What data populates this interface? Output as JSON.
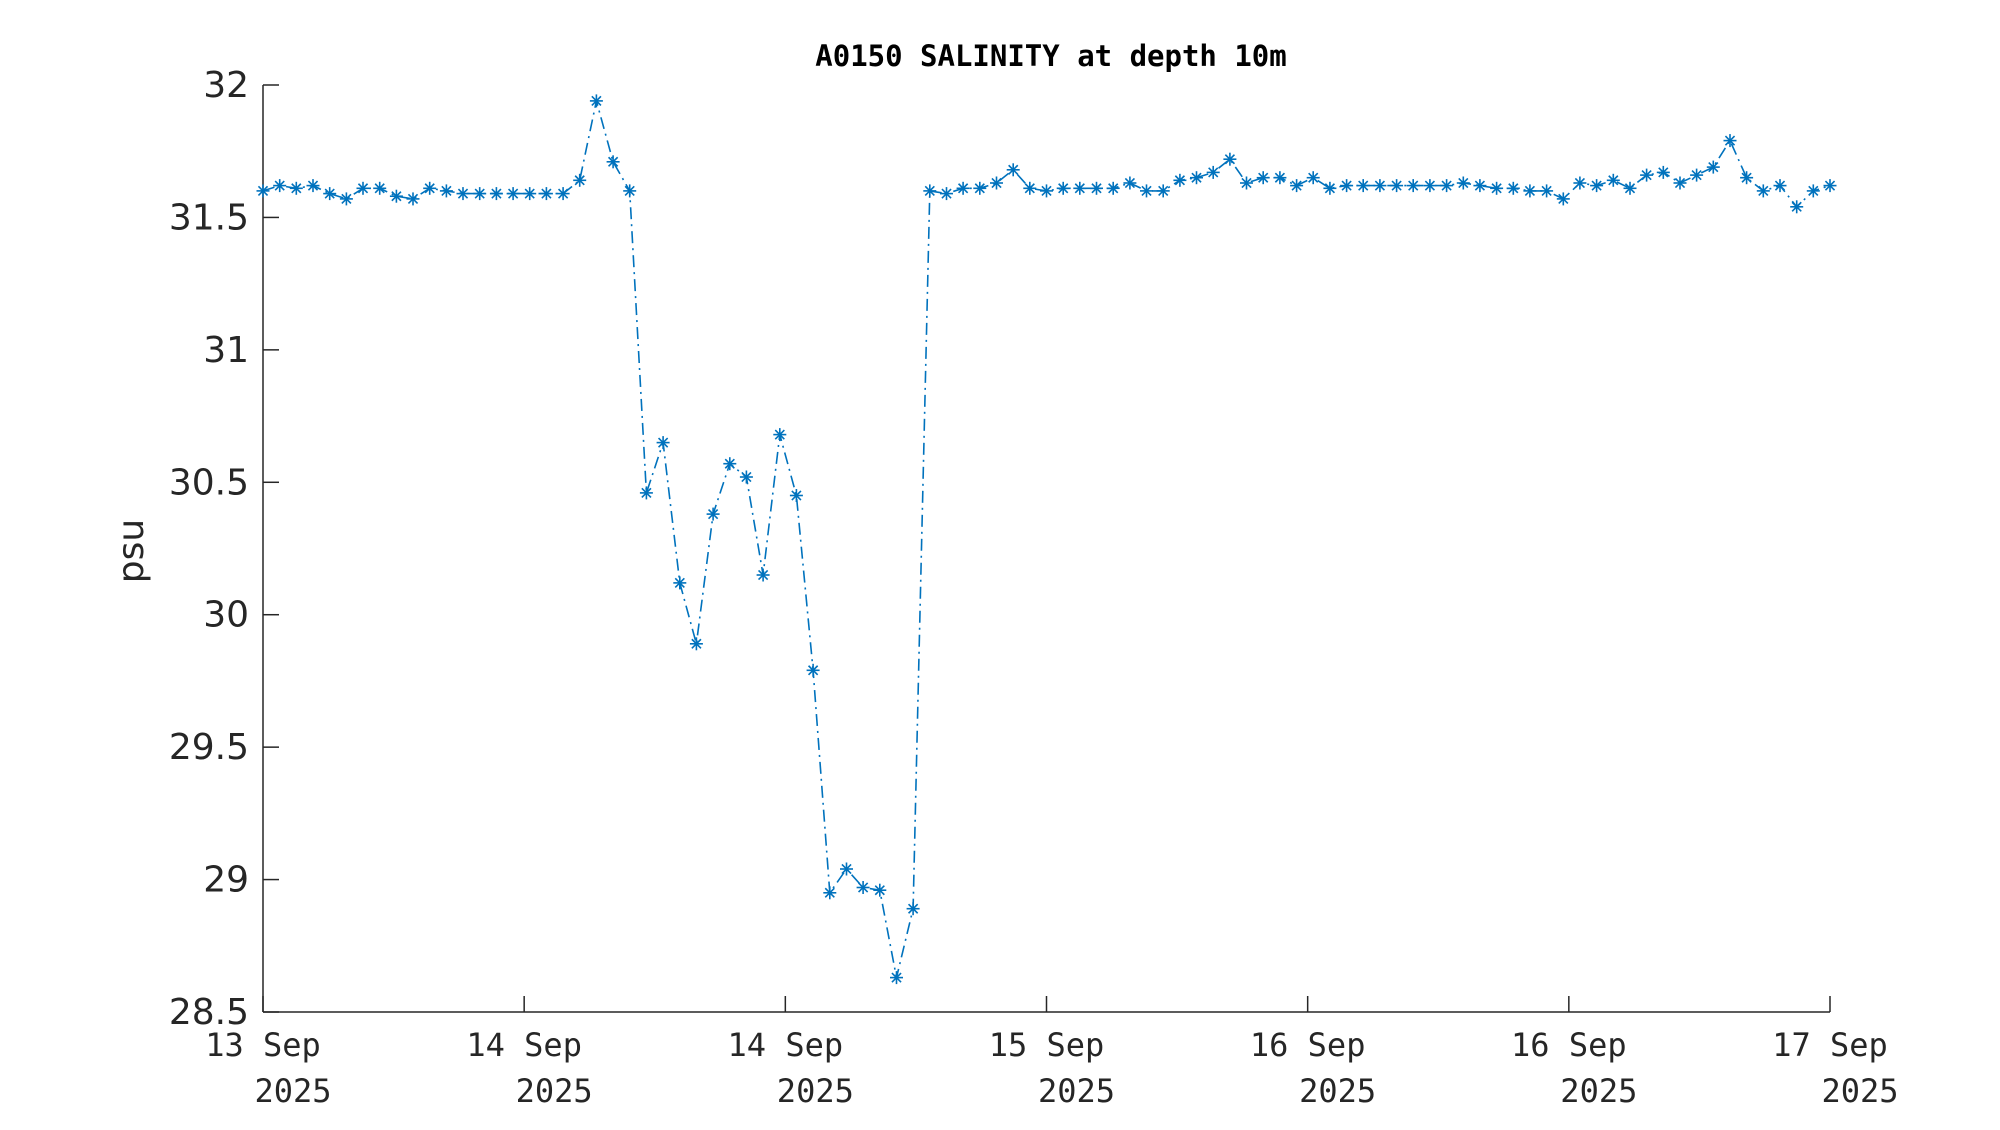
{
  "chart_data": {
    "type": "line",
    "title": "A0150 SALINITY at depth 10m",
    "xlabel": "",
    "ylabel": "psu",
    "ylim": [
      28.5,
      32
    ],
    "yticks": [
      "28.5",
      "29",
      "29.5",
      "30",
      "30.5",
      "31",
      "31.5",
      "32"
    ],
    "xticks": [
      {
        "line1": "13 Sep",
        "line2": "2025"
      },
      {
        "line1": "14 Sep",
        "line2": "2025"
      },
      {
        "line1": "14 Sep",
        "line2": "2025"
      },
      {
        "line1": "15 Sep",
        "line2": "2025"
      },
      {
        "line1": "16 Sep",
        "line2": "2025"
      },
      {
        "line1": "16 Sep",
        "line2": "2025"
      },
      {
        "line1": "17 Sep",
        "line2": "2025"
      }
    ],
    "grid": false,
    "line_style": "dash-dot",
    "marker": "asterisk",
    "color": "#0072BD",
    "series": [
      {
        "values": [
          31.6,
          31.62,
          31.61,
          31.62,
          31.59,
          31.57,
          31.61,
          31.61,
          31.58,
          31.57,
          31.61,
          31.6,
          31.59,
          31.59,
          31.59,
          31.59,
          31.59,
          31.59,
          31.59,
          31.64,
          31.94,
          31.71,
          31.6,
          30.46,
          30.65,
          30.12,
          29.89,
          30.38,
          30.57,
          30.52,
          30.15,
          30.68,
          30.45,
          29.79,
          28.95,
          29.04,
          28.97,
          28.96,
          28.63,
          28.89,
          31.6,
          31.59,
          31.61,
          31.61,
          31.63,
          31.68,
          31.61,
          31.6,
          31.61,
          31.61,
          31.61,
          31.61,
          31.63,
          31.6,
          31.6,
          31.64,
          31.65,
          31.67,
          31.72,
          31.63,
          31.65,
          31.65,
          31.62,
          31.65,
          31.61,
          31.62,
          31.62,
          31.62,
          31.62,
          31.62,
          31.62,
          31.62,
          31.63,
          31.62,
          31.61,
          31.61,
          31.6,
          31.6,
          31.57,
          31.63,
          31.62,
          31.64,
          31.61,
          31.66,
          31.67,
          31.63,
          31.66,
          31.69,
          31.79,
          31.65,
          31.6,
          31.62,
          31.54,
          31.6,
          31.62
        ]
      }
    ]
  }
}
